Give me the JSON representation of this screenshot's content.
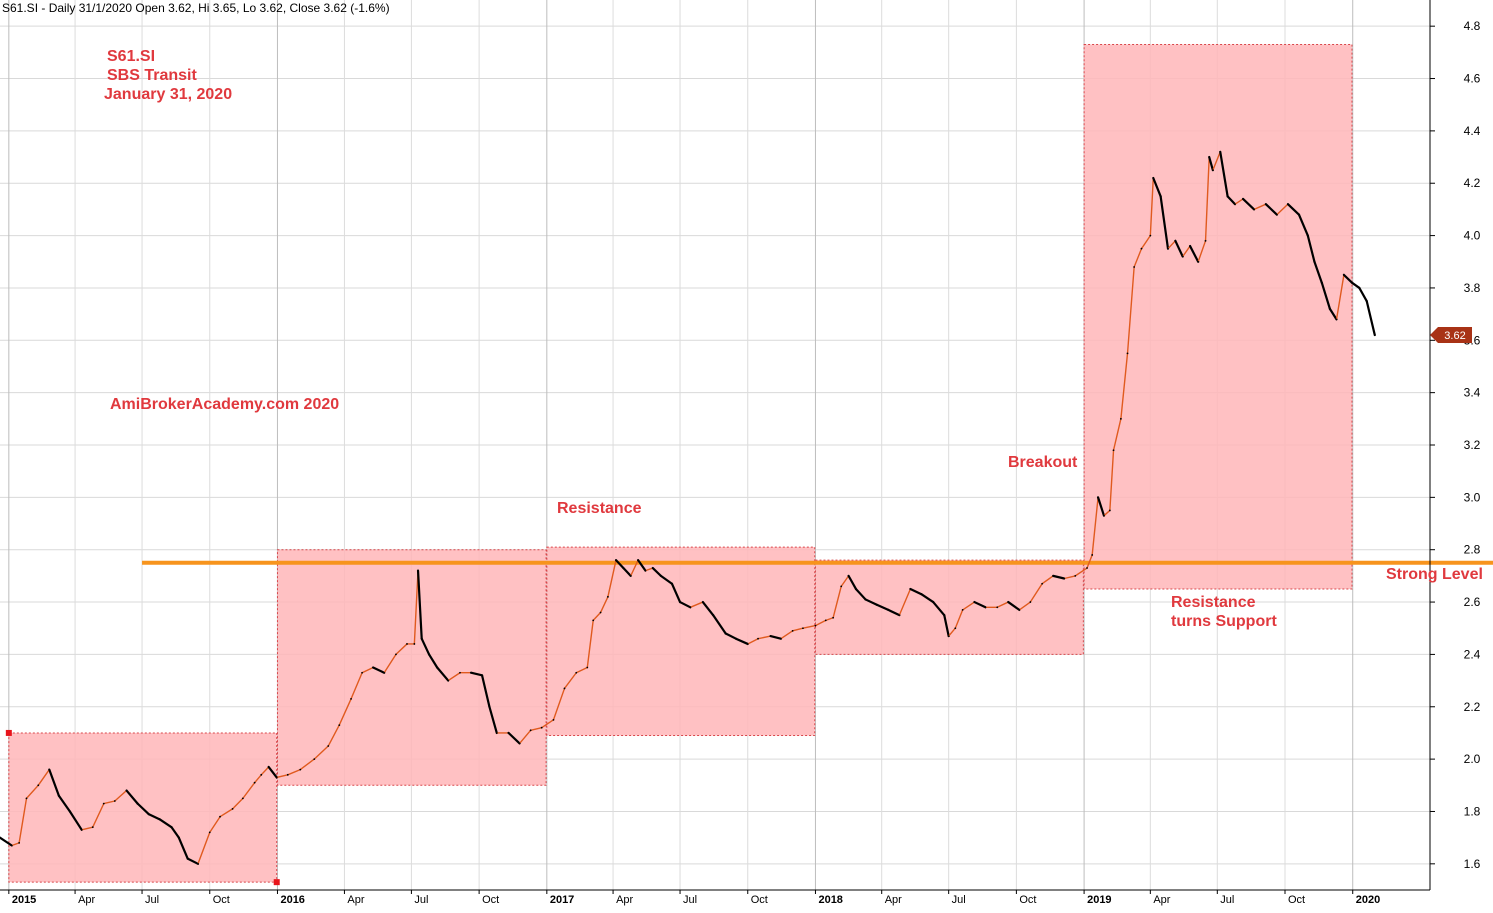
{
  "header": {
    "line": "S61.SI - Daily 31/1/2020 Open 3.62, Hi 3.65, Lo 3.62, Close 3.62 (-1.6%)"
  },
  "title_block": {
    "symbol": "S61.SI",
    "name": "SBS Transit",
    "date": "January 31, 2020"
  },
  "watermark": "AmiBrokerAcademy.com   2020",
  "annotations": {
    "resistance": "Resistance",
    "breakout": "Breakout",
    "strong_level": "Strong Level",
    "turns_support_1": "Resistance",
    "turns_support_2": "turns Support"
  },
  "last_price_badge": "3.62",
  "colors": {
    "box_fill": "#ffb6b9",
    "box_border": "#d9474b",
    "strong_line": "#f7941d",
    "price_up": "#e05a1e",
    "price_down": "#000000",
    "annotation_text": "#e0393e",
    "badge": "#a83216"
  },
  "chart_data": {
    "type": "line",
    "title": "S61.SI - Daily 31/1/2020 Open 3.62, Hi 3.65, Lo 3.62, Close 3.62 (-1.6%)",
    "xlabel": "",
    "ylabel": "",
    "x_range": [
      "2014-12-20",
      "2020-04-15"
    ],
    "ylim": [
      1.5,
      4.9
    ],
    "y_axis_side": "right",
    "y_ticks": [
      1.6,
      1.8,
      2.0,
      2.2,
      2.4,
      2.6,
      2.8,
      3.0,
      3.2,
      3.4,
      3.6,
      3.8,
      4.0,
      4.2,
      4.4,
      4.6,
      4.8
    ],
    "x_ticks": [
      {
        "date": "2015-01-01",
        "label": "2015",
        "year": true
      },
      {
        "date": "2015-04-01",
        "label": "Apr",
        "year": false
      },
      {
        "date": "2015-07-01",
        "label": "Jul",
        "year": false
      },
      {
        "date": "2015-10-01",
        "label": "Oct",
        "year": false
      },
      {
        "date": "2016-01-01",
        "label": "2016",
        "year": true
      },
      {
        "date": "2016-04-01",
        "label": "Apr",
        "year": false
      },
      {
        "date": "2016-07-01",
        "label": "Jul",
        "year": false
      },
      {
        "date": "2016-10-01",
        "label": "Oct",
        "year": false
      },
      {
        "date": "2017-01-01",
        "label": "2017",
        "year": true
      },
      {
        "date": "2017-04-01",
        "label": "Apr",
        "year": false
      },
      {
        "date": "2017-07-01",
        "label": "Jul",
        "year": false
      },
      {
        "date": "2017-10-01",
        "label": "Oct",
        "year": false
      },
      {
        "date": "2018-01-01",
        "label": "2018",
        "year": true
      },
      {
        "date": "2018-04-01",
        "label": "Apr",
        "year": false
      },
      {
        "date": "2018-07-01",
        "label": "Jul",
        "year": false
      },
      {
        "date": "2018-10-01",
        "label": "Oct",
        "year": false
      },
      {
        "date": "2019-01-01",
        "label": "2019",
        "year": true
      },
      {
        "date": "2019-04-01",
        "label": "Apr",
        "year": false
      },
      {
        "date": "2019-07-01",
        "label": "Jul",
        "year": false
      },
      {
        "date": "2019-10-01",
        "label": "Oct",
        "year": false
      },
      {
        "date": "2020-01-01",
        "label": "2020",
        "year": true
      }
    ],
    "grid": true,
    "yearly_range_boxes": [
      {
        "start": "2015-01-01",
        "end": "2015-12-31",
        "low": 1.53,
        "high": 2.1
      },
      {
        "start": "2016-01-01",
        "end": "2016-12-31",
        "low": 1.9,
        "high": 2.8
      },
      {
        "start": "2017-01-01",
        "end": "2017-12-31",
        "low": 2.09,
        "high": 2.81
      },
      {
        "start": "2018-01-01",
        "end": "2018-12-31",
        "low": 2.4,
        "high": 2.76
      },
      {
        "start": "2019-01-01",
        "end": "2019-12-31",
        "low": 2.65,
        "high": 4.73
      }
    ],
    "strong_level": {
      "value": 2.75,
      "start": "2015-07-01",
      "end": "2020-01-31"
    },
    "series": [
      {
        "values": [
          [
            "2014-12-20",
            1.7
          ],
          [
            "2015-01-05",
            1.67
          ],
          [
            "2015-01-15",
            1.68
          ],
          [
            "2015-01-25",
            1.85
          ],
          [
            "2015-02-10",
            1.9
          ],
          [
            "2015-02-25",
            1.96
          ],
          [
            "2015-03-10",
            1.86
          ],
          [
            "2015-03-25",
            1.8
          ],
          [
            "2015-04-10",
            1.73
          ],
          [
            "2015-04-25",
            1.74
          ],
          [
            "2015-05-10",
            1.83
          ],
          [
            "2015-05-25",
            1.84
          ],
          [
            "2015-06-10",
            1.88
          ],
          [
            "2015-06-25",
            1.83
          ],
          [
            "2015-07-10",
            1.79
          ],
          [
            "2015-07-25",
            1.77
          ],
          [
            "2015-08-10",
            1.74
          ],
          [
            "2015-08-20",
            1.7
          ],
          [
            "2015-09-01",
            1.62
          ],
          [
            "2015-09-15",
            1.6
          ],
          [
            "2015-10-01",
            1.72
          ],
          [
            "2015-10-15",
            1.78
          ],
          [
            "2015-11-01",
            1.81
          ],
          [
            "2015-11-15",
            1.85
          ],
          [
            "2015-12-01",
            1.91
          ],
          [
            "2015-12-10",
            1.94
          ],
          [
            "2015-12-20",
            1.97
          ],
          [
            "2015-12-31",
            1.93
          ],
          [
            "2016-01-15",
            1.94
          ],
          [
            "2016-02-01",
            1.96
          ],
          [
            "2016-02-20",
            2.0
          ],
          [
            "2016-03-10",
            2.05
          ],
          [
            "2016-03-25",
            2.13
          ],
          [
            "2016-04-10",
            2.23
          ],
          [
            "2016-04-25",
            2.33
          ],
          [
            "2016-05-10",
            2.35
          ],
          [
            "2016-05-25",
            2.33
          ],
          [
            "2016-06-10",
            2.4
          ],
          [
            "2016-06-25",
            2.44
          ],
          [
            "2016-07-05",
            2.44
          ],
          [
            "2016-07-10",
            2.72
          ],
          [
            "2016-07-15",
            2.46
          ],
          [
            "2016-07-25",
            2.4
          ],
          [
            "2016-08-05",
            2.35
          ],
          [
            "2016-08-20",
            2.3
          ],
          [
            "2016-09-05",
            2.33
          ],
          [
            "2016-09-20",
            2.33
          ],
          [
            "2016-10-05",
            2.32
          ],
          [
            "2016-10-15",
            2.2
          ],
          [
            "2016-10-25",
            2.1
          ],
          [
            "2016-11-10",
            2.1
          ],
          [
            "2016-11-25",
            2.06
          ],
          [
            "2016-12-10",
            2.11
          ],
          [
            "2016-12-25",
            2.12
          ],
          [
            "2017-01-10",
            2.15
          ],
          [
            "2017-01-25",
            2.27
          ],
          [
            "2017-02-10",
            2.33
          ],
          [
            "2017-02-25",
            2.35
          ],
          [
            "2017-03-05",
            2.53
          ],
          [
            "2017-03-15",
            2.56
          ],
          [
            "2017-03-25",
            2.62
          ],
          [
            "2017-04-05",
            2.76
          ],
          [
            "2017-04-15",
            2.73
          ],
          [
            "2017-04-25",
            2.7
          ],
          [
            "2017-05-05",
            2.76
          ],
          [
            "2017-05-15",
            2.72
          ],
          [
            "2017-05-25",
            2.73
          ],
          [
            "2017-06-05",
            2.7
          ],
          [
            "2017-06-20",
            2.67
          ],
          [
            "2017-07-01",
            2.6
          ],
          [
            "2017-07-15",
            2.58
          ],
          [
            "2017-08-01",
            2.6
          ],
          [
            "2017-08-15",
            2.55
          ],
          [
            "2017-09-01",
            2.48
          ],
          [
            "2017-09-15",
            2.46
          ],
          [
            "2017-10-01",
            2.44
          ],
          [
            "2017-10-15",
            2.46
          ],
          [
            "2017-11-01",
            2.47
          ],
          [
            "2017-11-15",
            2.46
          ],
          [
            "2017-12-01",
            2.49
          ],
          [
            "2017-12-15",
            2.5
          ],
          [
            "2018-01-01",
            2.51
          ],
          [
            "2018-01-15",
            2.53
          ],
          [
            "2018-01-25",
            2.54
          ],
          [
            "2018-02-05",
            2.66
          ],
          [
            "2018-02-15",
            2.7
          ],
          [
            "2018-02-25",
            2.65
          ],
          [
            "2018-03-10",
            2.61
          ],
          [
            "2018-03-25",
            2.59
          ],
          [
            "2018-04-10",
            2.57
          ],
          [
            "2018-04-25",
            2.55
          ],
          [
            "2018-05-10",
            2.65
          ],
          [
            "2018-05-25",
            2.63
          ],
          [
            "2018-06-10",
            2.6
          ],
          [
            "2018-06-25",
            2.55
          ],
          [
            "2018-07-01",
            2.47
          ],
          [
            "2018-07-10",
            2.5
          ],
          [
            "2018-07-20",
            2.57
          ],
          [
            "2018-08-05",
            2.6
          ],
          [
            "2018-08-20",
            2.58
          ],
          [
            "2018-09-05",
            2.58
          ],
          [
            "2018-09-20",
            2.6
          ],
          [
            "2018-10-05",
            2.57
          ],
          [
            "2018-10-20",
            2.6
          ],
          [
            "2018-11-05",
            2.67
          ],
          [
            "2018-11-20",
            2.7
          ],
          [
            "2018-12-05",
            2.69
          ],
          [
            "2018-12-20",
            2.7
          ],
          [
            "2019-01-05",
            2.73
          ],
          [
            "2019-01-12",
            2.78
          ],
          [
            "2019-01-20",
            3.0
          ],
          [
            "2019-01-28",
            2.93
          ],
          [
            "2019-02-05",
            2.95
          ],
          [
            "2019-02-10",
            3.18
          ],
          [
            "2019-02-20",
            3.3
          ],
          [
            "2019-03-01",
            3.55
          ],
          [
            "2019-03-10",
            3.88
          ],
          [
            "2019-03-20",
            3.95
          ],
          [
            "2019-04-01",
            4.0
          ],
          [
            "2019-04-05",
            4.22
          ],
          [
            "2019-04-15",
            4.15
          ],
          [
            "2019-04-25",
            3.95
          ],
          [
            "2019-05-05",
            3.98
          ],
          [
            "2019-05-15",
            3.92
          ],
          [
            "2019-05-25",
            3.96
          ],
          [
            "2019-06-05",
            3.9
          ],
          [
            "2019-06-15",
            3.98
          ],
          [
            "2019-06-20",
            4.3
          ],
          [
            "2019-06-25",
            4.25
          ],
          [
            "2019-07-05",
            4.32
          ],
          [
            "2019-07-15",
            4.15
          ],
          [
            "2019-07-25",
            4.12
          ],
          [
            "2019-08-05",
            4.14
          ],
          [
            "2019-08-20",
            4.1
          ],
          [
            "2019-09-05",
            4.12
          ],
          [
            "2019-09-20",
            4.08
          ],
          [
            "2019-10-05",
            4.12
          ],
          [
            "2019-10-20",
            4.08
          ],
          [
            "2019-11-01",
            4.0
          ],
          [
            "2019-11-10",
            3.9
          ],
          [
            "2019-11-20",
            3.82
          ],
          [
            "2019-12-01",
            3.72
          ],
          [
            "2019-12-10",
            3.68
          ],
          [
            "2019-12-20",
            3.85
          ],
          [
            "2019-12-31",
            3.82
          ],
          [
            "2020-01-10",
            3.8
          ],
          [
            "2020-01-20",
            3.75
          ],
          [
            "2020-01-31",
            3.62
          ]
        ]
      }
    ]
  }
}
